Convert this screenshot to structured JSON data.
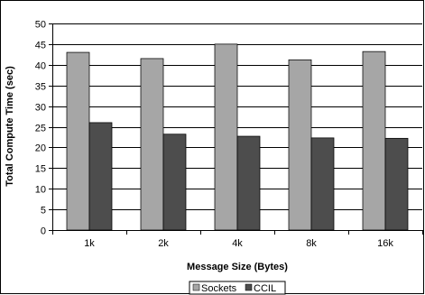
{
  "chart_data": {
    "type": "bar",
    "categories": [
      "1k",
      "2k",
      "4k",
      "8k",
      "16k"
    ],
    "series": [
      {
        "name": "Sockets",
        "values": [
          43,
          41.5,
          45,
          41.2,
          43.2
        ],
        "color": "#a6a6a6"
      },
      {
        "name": "CCIL",
        "values": [
          26,
          23.2,
          22.7,
          22.3,
          22.2
        ],
        "color": "#4d4d4d"
      }
    ],
    "title": "",
    "xlabel": "Message Size (Bytes)",
    "ylabel": "Total Compute Time (sec)",
    "ylim": [
      0,
      50
    ],
    "yticks": [
      0,
      5,
      10,
      15,
      20,
      25,
      30,
      35,
      40,
      45,
      50
    ],
    "grid": true,
    "legend": "bottom-center"
  }
}
